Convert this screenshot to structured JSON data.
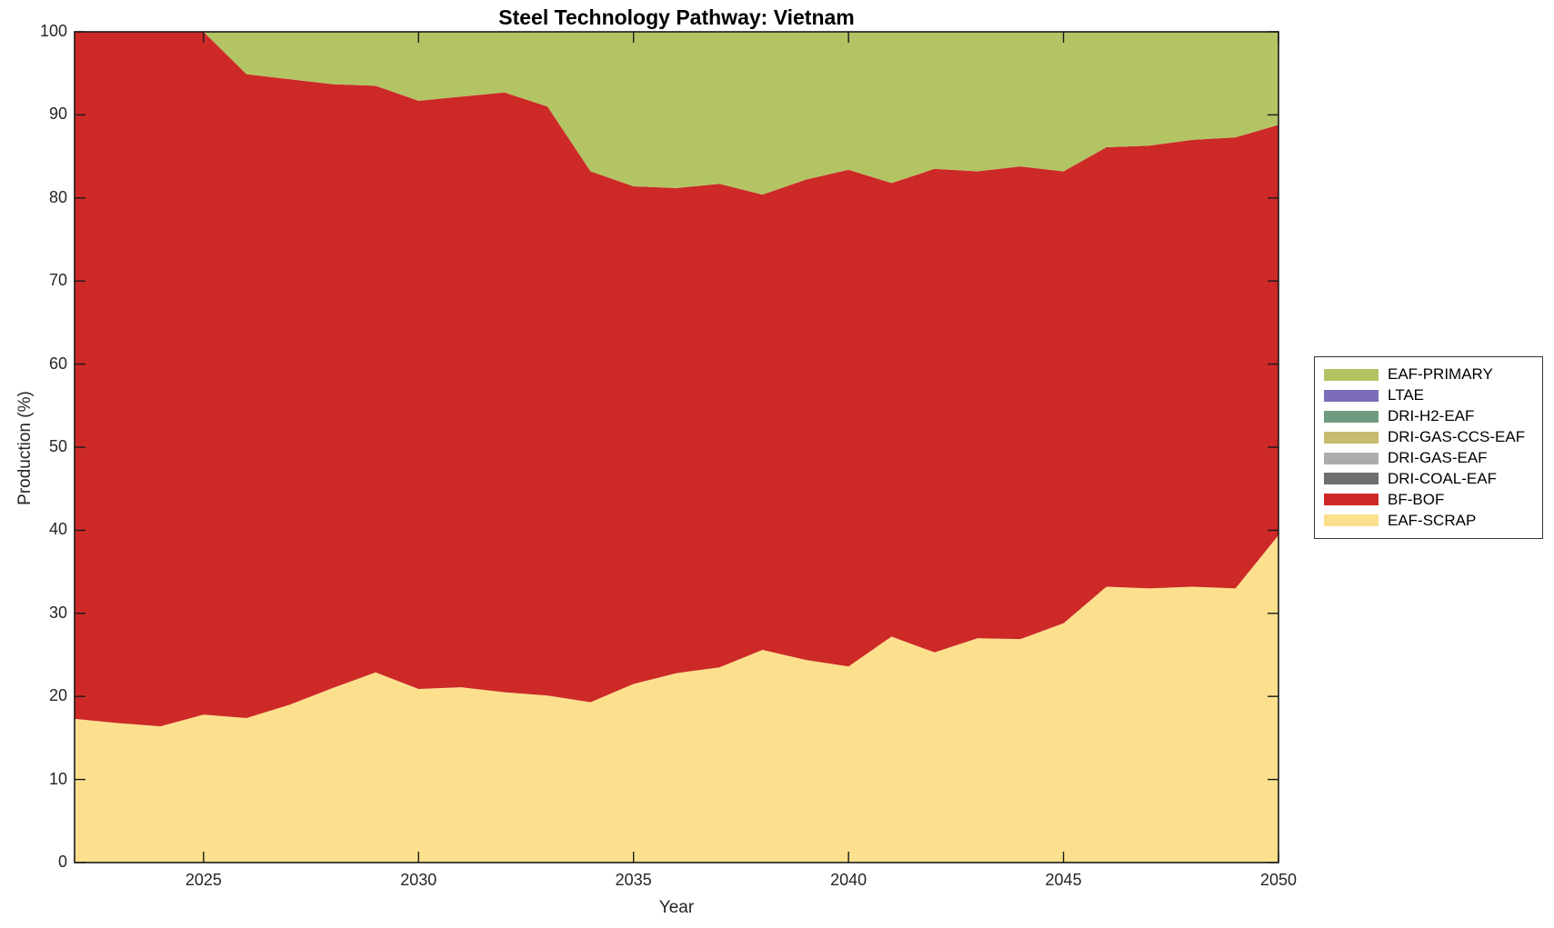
{
  "title": "Steel Technology Pathway: Vietnam",
  "chart_data": {
    "type": "area",
    "stacked": true,
    "title": "Steel Technology Pathway: Vietnam",
    "xlabel": "Year",
    "ylabel": "Production (%)",
    "xlim": [
      2022,
      2050
    ],
    "ylim": [
      0,
      100
    ],
    "grid": false,
    "xticks": [
      2025,
      2030,
      2035,
      2040,
      2045,
      2050
    ],
    "yticks": [
      0,
      10,
      20,
      30,
      40,
      50,
      60,
      70,
      80,
      90,
      100
    ],
    "x": [
      2022,
      2023,
      2024,
      2025,
      2026,
      2027,
      2028,
      2029,
      2030,
      2031,
      2032,
      2033,
      2034,
      2035,
      2036,
      2037,
      2038,
      2039,
      2040,
      2041,
      2042,
      2043,
      2044,
      2045,
      2046,
      2047,
      2048,
      2049,
      2050
    ],
    "series": [
      {
        "name": "EAF-SCRAP",
        "color": "#fce08e",
        "values": [
          17.3,
          16.8,
          16.4,
          17.8,
          17.4,
          19.0,
          21.0,
          22.9,
          20.9,
          21.1,
          20.5,
          20.1,
          19.3,
          21.5,
          22.8,
          23.5,
          25.6,
          24.4,
          23.6,
          27.2,
          25.3,
          27.0,
          26.9,
          28.8,
          33.2,
          33.0,
          33.2,
          33.0,
          39.4
        ]
      },
      {
        "name": "BF-BOF",
        "color": "#cd2a27",
        "values": [
          82.7,
          83.2,
          83.6,
          82.2,
          77.5,
          75.3,
          72.7,
          70.6,
          70.8,
          71.1,
          72.2,
          70.9,
          63.9,
          59.9,
          58.4,
          58.2,
          54.8,
          57.8,
          59.8,
          54.6,
          58.2,
          56.2,
          56.9,
          54.4,
          52.9,
          53.3,
          53.8,
          54.3,
          49.4
        ]
      },
      {
        "name": "DRI-COAL-EAF",
        "color": "#6f6f6f",
        "values": [
          0,
          0,
          0,
          0,
          0,
          0,
          0,
          0,
          0,
          0,
          0,
          0,
          0,
          0,
          0,
          0,
          0,
          0,
          0,
          0,
          0,
          0,
          0,
          0,
          0,
          0,
          0,
          0,
          0
        ]
      },
      {
        "name": "DRI-GAS-EAF",
        "color": "#acacac",
        "values": [
          0,
          0,
          0,
          0,
          0,
          0,
          0,
          0,
          0,
          0,
          0,
          0,
          0,
          0,
          0,
          0,
          0,
          0,
          0,
          0,
          0,
          0,
          0,
          0,
          0,
          0,
          0,
          0,
          0
        ]
      },
      {
        "name": "DRI-GAS-CCS-EAF",
        "color": "#c7bb6d",
        "values": [
          0,
          0,
          0,
          0,
          0,
          0,
          0,
          0,
          0,
          0,
          0,
          0,
          0,
          0,
          0,
          0,
          0,
          0,
          0,
          0,
          0,
          0,
          0,
          0,
          0,
          0,
          0,
          0,
          0
        ]
      },
      {
        "name": "DRI-H2-EAF",
        "color": "#6f9c81",
        "values": [
          0,
          0,
          0,
          0,
          0,
          0,
          0,
          0,
          0,
          0,
          0,
          0,
          0,
          0,
          0,
          0,
          0,
          0,
          0,
          0,
          0,
          0,
          0,
          0,
          0,
          0,
          0,
          0,
          0
        ]
      },
      {
        "name": "LTAE",
        "color": "#7d6cb8",
        "values": [
          0,
          0,
          0,
          0,
          0,
          0,
          0,
          0,
          0,
          0,
          0,
          0,
          0,
          0,
          0,
          0,
          0,
          0,
          0,
          0,
          0,
          0,
          0,
          0,
          0,
          0,
          0,
          0,
          0
        ]
      },
      {
        "name": "EAF-PRIMARY",
        "color": "#b3c464",
        "values": [
          0,
          0,
          0,
          0,
          5.1,
          5.7,
          6.3,
          6.5,
          8.3,
          7.8,
          7.3,
          9.0,
          16.8,
          18.6,
          18.8,
          18.3,
          19.6,
          17.8,
          16.6,
          18.2,
          16.5,
          16.8,
          16.2,
          16.8,
          13.9,
          13.7,
          13.0,
          12.7,
          11.2
        ]
      }
    ],
    "legend": {
      "position": "right-outside",
      "items": [
        "EAF-PRIMARY",
        "LTAE",
        "DRI-H2-EAF",
        "DRI-GAS-CCS-EAF",
        "DRI-GAS-EAF",
        "DRI-COAL-EAF",
        "BF-BOF",
        "EAF-SCRAP"
      ]
    },
    "axis_color": "#1a1a1a",
    "tick_label_color": "#262626"
  }
}
